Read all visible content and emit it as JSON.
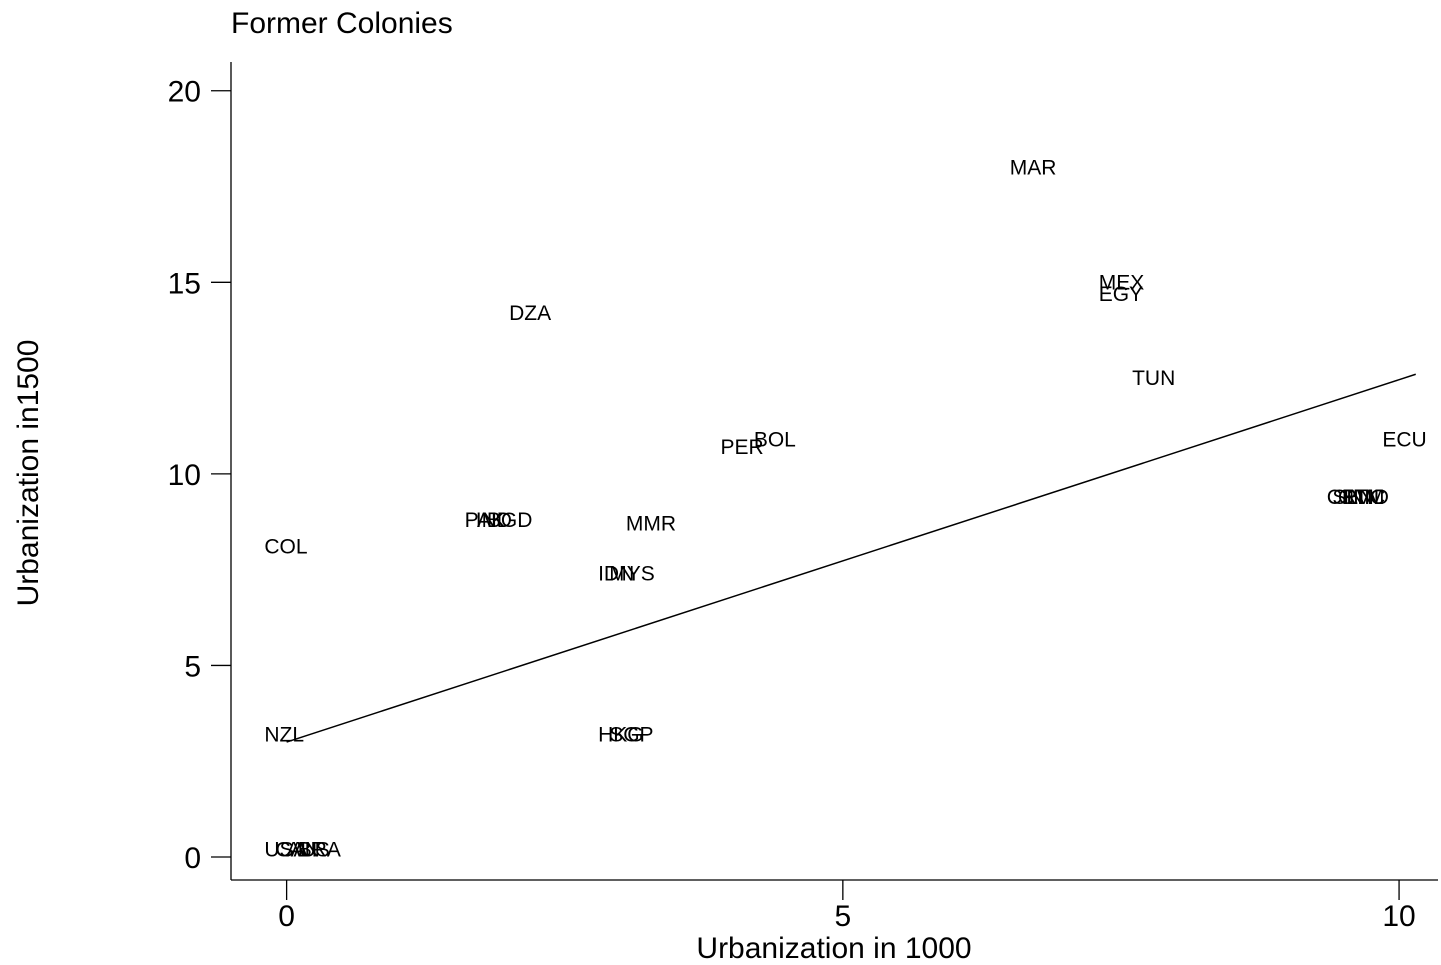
{
  "chart_data": {
    "type": "scatter",
    "title": "Former Colonies",
    "xlabel": "Urbanization in 1000",
    "ylabel": "Urbanization in1500",
    "xlim": [
      -0.5,
      10.35
    ],
    "ylim": [
      -0.6,
      20.75
    ],
    "xticks": [
      0,
      5,
      10
    ],
    "yticks": [
      0,
      5,
      10,
      15,
      20
    ],
    "grid": false,
    "legend": "none",
    "points": [
      {
        "label": "MAR",
        "x": 6.5,
        "y": 18.0
      },
      {
        "label": "MEX",
        "x": 7.3,
        "y": 15.0
      },
      {
        "label": "EGY",
        "x": 7.3,
        "y": 14.7
      },
      {
        "label": "DZA",
        "x": 2.0,
        "y": 14.2
      },
      {
        "label": "TUN",
        "x": 7.6,
        "y": 12.5
      },
      {
        "label": "BOL",
        "x": 4.2,
        "y": 10.9
      },
      {
        "label": "PER",
        "x": 3.9,
        "y": 10.7
      },
      {
        "label": "ECU",
        "x": 9.85,
        "y": 10.9
      },
      {
        "label": "CRI",
        "x": 9.35,
        "y": 9.4
      },
      {
        "label": "SLV",
        "x": 9.4,
        "y": 9.4
      },
      {
        "label": "GTM",
        "x": 9.45,
        "y": 9.4
      },
      {
        "label": "HND",
        "x": 9.5,
        "y": 9.4
      },
      {
        "label": "NIC",
        "x": 9.55,
        "y": 9.4
      },
      {
        "label": "PAK",
        "x": 1.6,
        "y": 8.8
      },
      {
        "label": "IND",
        "x": 1.7,
        "y": 8.8
      },
      {
        "label": "BGD",
        "x": 1.8,
        "y": 8.8
      },
      {
        "label": "MMR",
        "x": 3.05,
        "y": 8.7
      },
      {
        "label": "COL",
        "x": -0.2,
        "y": 8.1
      },
      {
        "label": "IDN",
        "x": 2.8,
        "y": 7.4
      },
      {
        "label": "MYS",
        "x": 2.9,
        "y": 7.4
      },
      {
        "label": "NZL",
        "x": -0.2,
        "y": 3.2
      },
      {
        "label": "HKG",
        "x": 2.8,
        "y": 3.2
      },
      {
        "label": "SGP",
        "x": 2.9,
        "y": 3.2
      },
      {
        "label": "USA",
        "x": -0.2,
        "y": 0.2
      },
      {
        "label": "CAN",
        "x": -0.1,
        "y": 0.2
      },
      {
        "label": "AUS",
        "x": 0.0,
        "y": 0.2
      },
      {
        "label": "BRA",
        "x": 0.1,
        "y": 0.2
      }
    ],
    "fit_line": {
      "x": [
        0,
        10.15
      ],
      "y": [
        3.0,
        12.6
      ]
    }
  }
}
